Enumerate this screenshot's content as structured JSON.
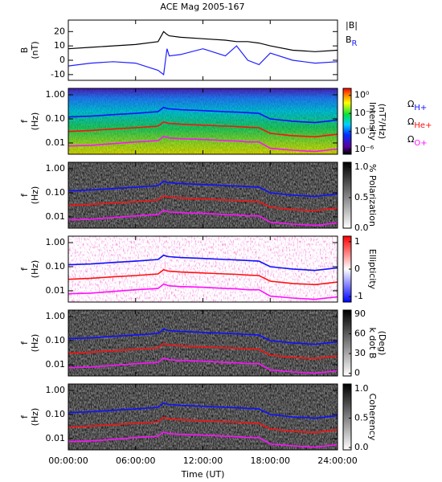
{
  "chart_data": [
    {
      "type": "line",
      "title": "ACE Mag 2005-167",
      "ylabel": [
        "B",
        "(nT)"
      ],
      "ylim": [
        -14,
        28
      ],
      "yticks": [
        -10,
        0,
        10,
        20
      ],
      "x": [
        0,
        2,
        4,
        6,
        8,
        8.5,
        8.8,
        9,
        10,
        12,
        14,
        15,
        16,
        17,
        18,
        20,
        22,
        24
      ],
      "series": [
        {
          "name": "|B|",
          "color": "#000000",
          "values": [
            8,
            9,
            10,
            11,
            13,
            20,
            18,
            17,
            16,
            15,
            14,
            13,
            13,
            12,
            10,
            7,
            6,
            7
          ]
        },
        {
          "name": "B",
          "sub": "R",
          "color": "#2020ff",
          "values": [
            -4,
            -2,
            -1,
            -2,
            -7,
            -10,
            8,
            3,
            4,
            8,
            3,
            10,
            0,
            -3,
            5,
            0,
            -2,
            -1
          ]
        }
      ]
    },
    {
      "type": "spectrogram",
      "ylabel": [
        "f",
        "(Hz)"
      ],
      "ylim": [
        0.0034,
        1.85
      ],
      "log": true,
      "yticks": [
        {
          "value": 1,
          "label": "1.00"
        },
        {
          "value": 0.1,
          "label": "0.10"
        },
        {
          "value": 0.01,
          "label": "0.01"
        }
      ],
      "symbol": "Ω",
      "series": [
        {
          "name": "H+",
          "color": "#1010ff",
          "values": [
            0.12,
            0.13,
            0.15,
            0.17,
            0.2,
            0.3,
            0.27,
            0.26,
            0.24,
            0.22,
            0.2,
            0.19,
            0.18,
            0.17,
            0.1,
            0.08,
            0.07,
            0.09
          ]
        },
        {
          "name": "He+",
          "color": "#ff1010",
          "values": [
            0.03,
            0.033,
            0.038,
            0.043,
            0.05,
            0.075,
            0.068,
            0.065,
            0.06,
            0.055,
            0.05,
            0.048,
            0.045,
            0.043,
            0.025,
            0.02,
            0.018,
            0.023
          ]
        },
        {
          "name": "O+",
          "color": "#ff10ff",
          "values": [
            0.0075,
            0.008,
            0.0094,
            0.011,
            0.0125,
            0.019,
            0.017,
            0.016,
            0.015,
            0.014,
            0.0125,
            0.012,
            0.011,
            0.011,
            0.006,
            0.005,
            0.0044,
            0.0056
          ]
        }
      ],
      "colorbar": {
        "label": [
          "Intensity",
          "(nT²/Hz)"
        ],
        "log": true,
        "lim": [
          3e-07,
          6
        ],
        "scheme": "rainbow",
        "ticks": [
          {
            "value": 1,
            "label": "10⁰"
          },
          {
            "value": 0.01,
            "label": "10⁻²"
          },
          {
            "value": 0.0001,
            "label": "10⁻⁴"
          },
          {
            "value": 1e-06,
            "label": "10⁻⁶"
          }
        ]
      }
    },
    {
      "type": "spectrogram",
      "ylabel": [
        "f",
        "(Hz)"
      ],
      "ylim": [
        0.0034,
        1.85
      ],
      "log": true,
      "yticks": [
        {
          "value": 1,
          "label": "1.00"
        },
        {
          "value": 0.1,
          "label": "0.10"
        },
        {
          "value": 0.01,
          "label": "0.01"
        }
      ],
      "colorbar": {
        "label": [
          "% Polarization"
        ],
        "lim": [
          0,
          1.08
        ],
        "scheme": "gray",
        "ticks": [
          {
            "value": 0,
            "label": "0.0"
          },
          {
            "value": 0.5,
            "label": "0.5"
          },
          {
            "value": 1,
            "label": "1.0"
          }
        ]
      }
    },
    {
      "type": "spectrogram",
      "ylabel": [
        "f",
        "(Hz)"
      ],
      "ylim": [
        0.0034,
        1.85
      ],
      "log": true,
      "yticks": [
        {
          "value": 1,
          "label": "1.00"
        },
        {
          "value": 0.1,
          "label": "0.10"
        },
        {
          "value": 0.01,
          "label": "0.01"
        }
      ],
      "colorbar": {
        "label": [
          "Ellipticity"
        ],
        "lim": [
          -1.2,
          1.2
        ],
        "scheme": "bwr",
        "ticks": [
          -1,
          0,
          1
        ]
      }
    },
    {
      "type": "spectrogram",
      "ylabel": [
        "f",
        "(Hz)"
      ],
      "ylim": [
        0.0034,
        1.85
      ],
      "log": true,
      "yticks": [
        {
          "value": 1,
          "label": "1.00"
        },
        {
          "value": 0.1,
          "label": "0.10"
        },
        {
          "value": 0.01,
          "label": "0.01"
        }
      ],
      "colorbar": {
        "label": [
          "k dot B",
          "(Deg)"
        ],
        "lim": [
          -4,
          96
        ],
        "scheme": "gray",
        "ticks": [
          0,
          30,
          60,
          90
        ]
      }
    },
    {
      "type": "spectrogram",
      "ylabel": [
        "f",
        "(Hz)"
      ],
      "ylim": [
        0.0034,
        1.85
      ],
      "log": true,
      "yticks": [
        {
          "value": 1,
          "label": "1.00"
        },
        {
          "value": 0.1,
          "label": "0.10"
        },
        {
          "value": 0.01,
          "label": "0.01"
        }
      ],
      "colorbar": {
        "label": [
          "Coherency"
        ],
        "lim": [
          -0.04,
          1.08
        ],
        "scheme": "gray",
        "ticks": [
          {
            "value": 0,
            "label": "0.0"
          },
          {
            "value": 0.5,
            "label": "0.5"
          },
          {
            "value": 1,
            "label": "1.0"
          }
        ]
      },
      "xlabel": "Time (UT)",
      "xlim": [
        0,
        24
      ],
      "xticks": [
        {
          "value": 0,
          "label": "00:00:00"
        },
        {
          "value": 6,
          "label": "06:00:00"
        },
        {
          "value": 12,
          "label": "12:00:00"
        },
        {
          "value": 18,
          "label": "18:00:00"
        },
        {
          "value": 24,
          "label": "24:00:00"
        }
      ]
    }
  ]
}
